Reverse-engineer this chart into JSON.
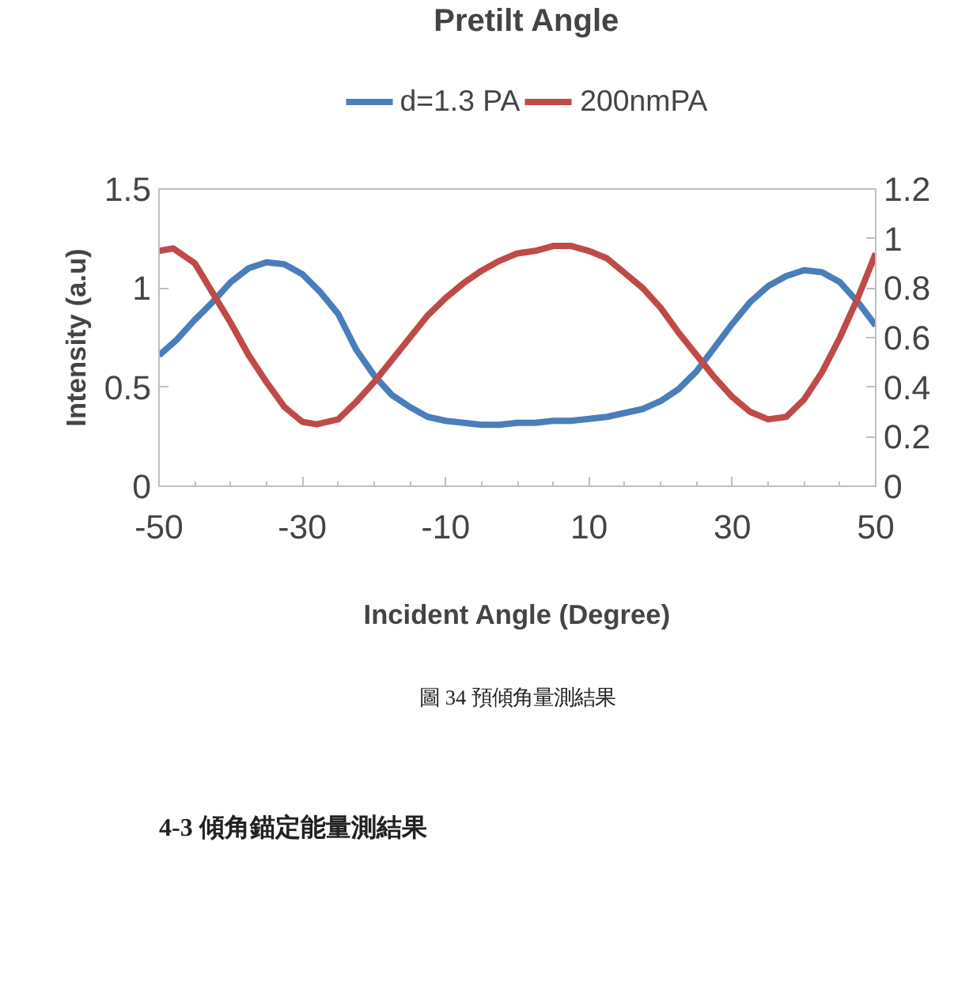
{
  "chart_data": {
    "type": "line",
    "title": "Pretilt Angle",
    "xlabel": "Incident Angle (Degree)",
    "ylabel": "Intensity (a.u)",
    "xlim": [
      -50,
      50
    ],
    "xticks": [
      -50,
      -30,
      -10,
      10,
      30,
      50
    ],
    "ylim": [
      0,
      1.5
    ],
    "yticks": [
      0,
      0.5,
      1,
      1.5
    ],
    "y2lim": [
      0,
      1.2
    ],
    "y2ticks": [
      0,
      0.2,
      0.4,
      0.6,
      0.8,
      1,
      1.2
    ],
    "grid": false,
    "legend": "top",
    "marker": "none",
    "line_style": "solid",
    "annotations": [
      "圖 34 預傾角量測結果",
      "4-3 傾角錨定能量測結果"
    ],
    "series": [
      {
        "name": "d=1.3 PA",
        "color": "#4a7ebb",
        "x": [
          -50,
          -47.5,
          -45,
          -42.5,
          -40,
          -37.5,
          -35,
          -32.5,
          -30,
          -27.5,
          -25,
          -22.5,
          -20,
          -17.5,
          -15,
          -12.5,
          -10,
          -7.5,
          -5,
          -2.5,
          0,
          2.5,
          5,
          7.5,
          10,
          12.5,
          15,
          17.5,
          20,
          22.5,
          25,
          27.5,
          30,
          32.5,
          35,
          37.5,
          40,
          42.5,
          45,
          47.5,
          50
        ],
        "values": [
          0.66,
          0.74,
          0.84,
          0.93,
          1.03,
          1.1,
          1.13,
          1.12,
          1.07,
          0.98,
          0.87,
          0.69,
          0.56,
          0.46,
          0.4,
          0.35,
          0.33,
          0.32,
          0.31,
          0.31,
          0.32,
          0.32,
          0.33,
          0.33,
          0.34,
          0.35,
          0.37,
          0.39,
          0.43,
          0.49,
          0.58,
          0.7,
          0.82,
          0.93,
          1.01,
          1.06,
          1.09,
          1.08,
          1.03,
          0.93,
          0.81
        ]
      },
      {
        "name": "200nmPA",
        "color": "#be4b48",
        "axis": "y2",
        "x": [
          -50,
          -48,
          -45,
          -42.5,
          -40,
          -37.5,
          -35,
          -32.5,
          -30,
          -28,
          -25,
          -22.5,
          -20,
          -17.5,
          -15,
          -12.5,
          -10,
          -7.5,
          -5,
          -2.5,
          0,
          2.5,
          5,
          7.5,
          10,
          12.5,
          15,
          17.5,
          20,
          22.5,
          25,
          27.5,
          30,
          32.5,
          35,
          37.5,
          40,
          42.5,
          45,
          47.5,
          50
        ],
        "values": [
          0.95,
          0.96,
          0.9,
          0.78,
          0.66,
          0.53,
          0.42,
          0.32,
          0.26,
          0.25,
          0.27,
          0.34,
          0.42,
          0.51,
          0.6,
          0.69,
          0.76,
          0.82,
          0.87,
          0.91,
          0.94,
          0.95,
          0.97,
          0.97,
          0.95,
          0.92,
          0.86,
          0.8,
          0.72,
          0.62,
          0.53,
          0.44,
          0.36,
          0.3,
          0.27,
          0.28,
          0.35,
          0.46,
          0.6,
          0.76,
          0.94
        ]
      }
    ]
  }
}
